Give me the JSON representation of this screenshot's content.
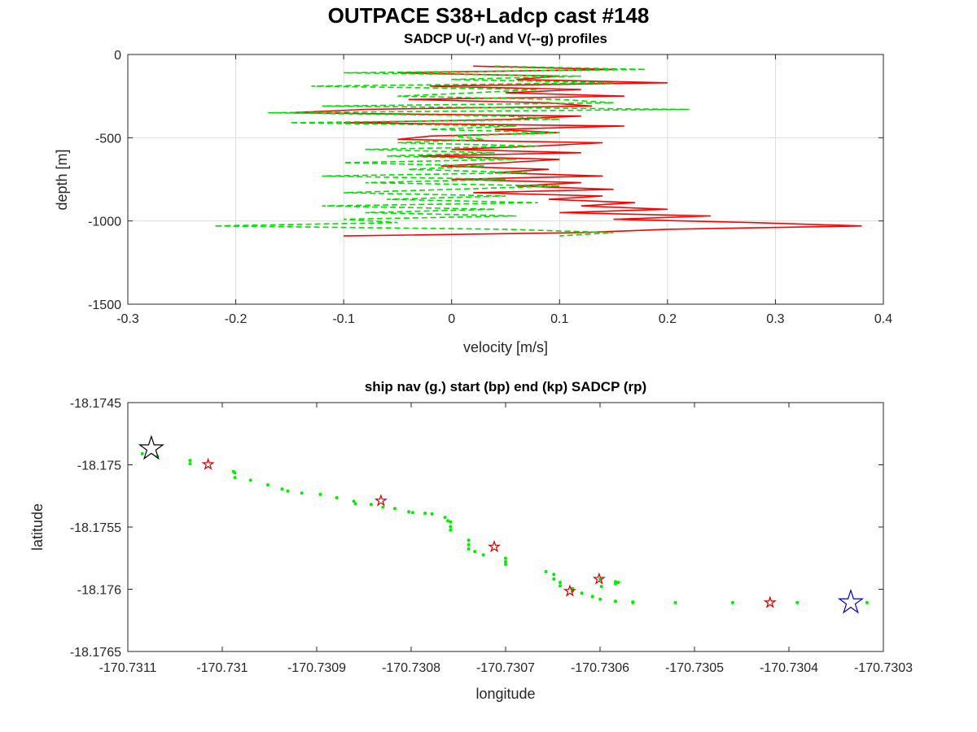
{
  "figure": {
    "title": "OUTPACE S38+Ladcp cast #148"
  },
  "chart_data": [
    {
      "type": "line",
      "title": "SADCP U(-r) and V(--g) profiles",
      "xlabel": "velocity [m/s]",
      "ylabel": "depth [m]",
      "xlim": [
        -0.3,
        0.4
      ],
      "ylim": [
        -1500,
        0
      ],
      "xticks": [
        -0.3,
        -0.2,
        -0.1,
        0,
        0.1,
        0.2,
        0.3,
        0.4
      ],
      "xtick_labels": [
        "-0.3",
        "-0.2",
        "-0.1",
        "0",
        "0.1",
        "0.2",
        "0.3",
        "0.4"
      ],
      "yticks": [
        0,
        -500,
        -1000,
        -1500
      ],
      "ytick_labels": [
        "0",
        "-500",
        "-1000",
        "-1500"
      ],
      "grid": true,
      "series": [
        {
          "color": "#ff0000",
          "style": "solid",
          "depth": [
            -70,
            -90,
            -110,
            -130,
            -150,
            -170,
            -190,
            -210,
            -230,
            -250,
            -270,
            -290,
            -310,
            -330,
            -350,
            -370,
            -390,
            -410,
            -430,
            -450,
            -470,
            -490,
            -510,
            -530,
            -550,
            -570,
            -590,
            -610,
            -630,
            -650,
            -670,
            -690,
            -710,
            -730,
            -750,
            -770,
            -790,
            -810,
            -830,
            -850,
            -870,
            -890,
            -910,
            -930,
            -950,
            -970,
            -990,
            -1010,
            -1030,
            -1050,
            -1070,
            -1090
          ],
          "values": [
            0.02,
            0.15,
            -0.05,
            0.1,
            0.06,
            0.2,
            -0.02,
            0.12,
            0.05,
            0.16,
            -0.04,
            0.09,
            0.13,
            -0.08,
            -0.15,
            0.12,
            0.05,
            -0.1,
            0.16,
            0.04,
            0.1,
            -0.02,
            -0.05,
            0.14,
            0.08,
            0.0,
            0.12,
            -0.03,
            0.1,
            0.05,
            -0.01,
            0.09,
            0.04,
            0.14,
            0.0,
            0.12,
            0.06,
            0.15,
            0.02,
            0.14,
            0.09,
            0.17,
            0.12,
            0.2,
            0.1,
            0.24,
            0.15,
            0.28,
            0.38,
            0.2,
            0.12,
            -0.1
          ]
        },
        {
          "color": "#00dd00",
          "style": "dashed",
          "depth": [
            -70,
            -90,
            -110,
            -130,
            -150,
            -170,
            -190,
            -210,
            -230,
            -250,
            -270,
            -290,
            -310,
            -330,
            -350,
            -370,
            -390,
            -410,
            -430,
            -450,
            -470,
            -490,
            -510,
            -530,
            -550,
            -570,
            -590,
            -610,
            -630,
            -650,
            -670,
            -690,
            -710,
            -730,
            -750,
            -770,
            -790,
            -810,
            -830,
            -850,
            -870,
            -890,
            -910,
            -930,
            -950,
            -970,
            -990,
            -1010,
            -1030,
            -1050,
            -1070,
            -1090
          ],
          "values": [
            0.04,
            0.18,
            -0.1,
            0.12,
            0.0,
            0.15,
            -0.13,
            0.08,
            0.02,
            -0.05,
            0.1,
            0.15,
            -0.12,
            0.22,
            -0.17,
            0.05,
            0.1,
            -0.15,
            0.06,
            -0.02,
            0.1,
            0.0,
            0.03,
            -0.05,
            0.08,
            -0.08,
            0.04,
            -0.06,
            0.06,
            -0.1,
            0.03,
            -0.04,
            0.07,
            -0.12,
            0.05,
            -0.08,
            0.1,
            0.0,
            -0.1,
            0.05,
            -0.06,
            0.08,
            -0.12,
            0.04,
            -0.08,
            0.06,
            -0.1,
            -0.05,
            -0.22,
            0.05,
            0.15,
            0.1
          ]
        }
      ]
    },
    {
      "type": "scatter",
      "title": "ship nav (g.) start (bp) end (kp) SADCP (rp)",
      "xlabel": "longitude",
      "ylabel": "latitude",
      "xlim": [
        -170.7311,
        -170.7303
      ],
      "ylim": [
        -18.1765,
        -18.1745
      ],
      "xticks": [
        -170.7311,
        -170.731,
        -170.7309,
        -170.7308,
        -170.7307,
        -170.7306,
        -170.7305,
        -170.7304,
        -170.7303
      ],
      "xtick_labels": [
        "-170.7311",
        "-170.731",
        "-170.7309",
        "-170.7308",
        "-170.7307",
        "-170.7306",
        "-170.7305",
        "-170.7304",
        "-170.7303"
      ],
      "yticks": [
        -18.1745,
        -18.175,
        -18.1755,
        -18.176,
        -18.1765
      ],
      "ytick_labels": [
        "-18.1745",
        "-18.175",
        "-18.1755",
        "-18.176",
        "-18.1765"
      ],
      "grid": false,
      "ship_nav": {
        "color": "#00ee00",
        "x": [
          -170.73113,
          -170.73111,
          -170.7310847,
          -170.7310688,
          -170.7310341,
          -170.7310341,
          -170.7309883,
          -170.7309867,
          -170.7309866,
          -170.7309701,
          -170.7309518,
          -170.7309366,
          -170.7309306,
          -170.7309158,
          -170.7308962,
          -170.7308788,
          -170.7308607,
          -170.730859,
          -170.7308422,
          -170.7308299,
          -170.7308173,
          -170.7308025,
          -170.7307984,
          -170.7307853,
          -170.7307779,
          -170.7307641,
          -170.7307612,
          -170.7307584,
          -170.7307584,
          -170.7307584,
          -170.7307391,
          -170.7307391,
          -170.7307391,
          -170.7307326,
          -170.7307235,
          -170.7307,
          -170.7307,
          -170.7307,
          -170.7306572,
          -170.730649,
          -170.730649,
          -170.7306422,
          -170.7306422,
          -170.7306293,
          -170.7306293,
          -170.7306193,
          -170.730608,
          -170.7305999,
          -170.7305836,
          -170.7305836,
          -170.7305999,
          -170.7305836,
          -170.7305653,
          -170.7305653,
          -170.7305985,
          -170.7305806,
          -170.7305203,
          -170.7304596,
          -170.7303912,
          -170.7303173
        ],
        "y": [
          -18.174886,
          -18.174908,
          -18.174911,
          -18.174932,
          -18.174965,
          -18.174992,
          -18.175054,
          -18.175065,
          -18.175102,
          -18.175124,
          -18.175162,
          -18.175194,
          -18.175211,
          -18.175227,
          -18.175238,
          -18.175265,
          -18.175292,
          -18.175313,
          -18.175319,
          -18.17534,
          -18.175351,
          -18.175378,
          -18.175384,
          -18.175389,
          -18.175395,
          -18.175422,
          -18.175449,
          -18.175459,
          -18.175497,
          -18.175524,
          -18.175605,
          -18.175643,
          -18.175676,
          -18.175697,
          -18.175724,
          -18.175751,
          -18.175778,
          -18.1758,
          -18.175859,
          -18.175881,
          -18.175918,
          -18.175945,
          -18.175972,
          -18.175994,
          -18.176015,
          -18.176031,
          -18.176058,
          -18.175918,
          -18.17594,
          -18.175956,
          -18.17608,
          -18.176096,
          -18.176102,
          -18.176107,
          -18.175978,
          -18.175945,
          -18.176107,
          -18.176107,
          -18.176107,
          -18.176107
        ]
      },
      "sadcp": {
        "color": "#cc0000",
        "x": [
          -170.731015,
          -170.730832,
          -170.730712,
          -170.730632,
          -170.730601,
          -170.73042
        ],
        "y": [
          -18.174997,
          -18.175289,
          -18.175659,
          -18.176015,
          -18.175918,
          -18.176107
        ]
      },
      "start": {
        "color": "#0000cc",
        "x": -170.7303345,
        "y": -18.176107
      },
      "end": {
        "color": "#000000",
        "x": -170.7310751,
        "y": -18.17487
      }
    }
  ]
}
